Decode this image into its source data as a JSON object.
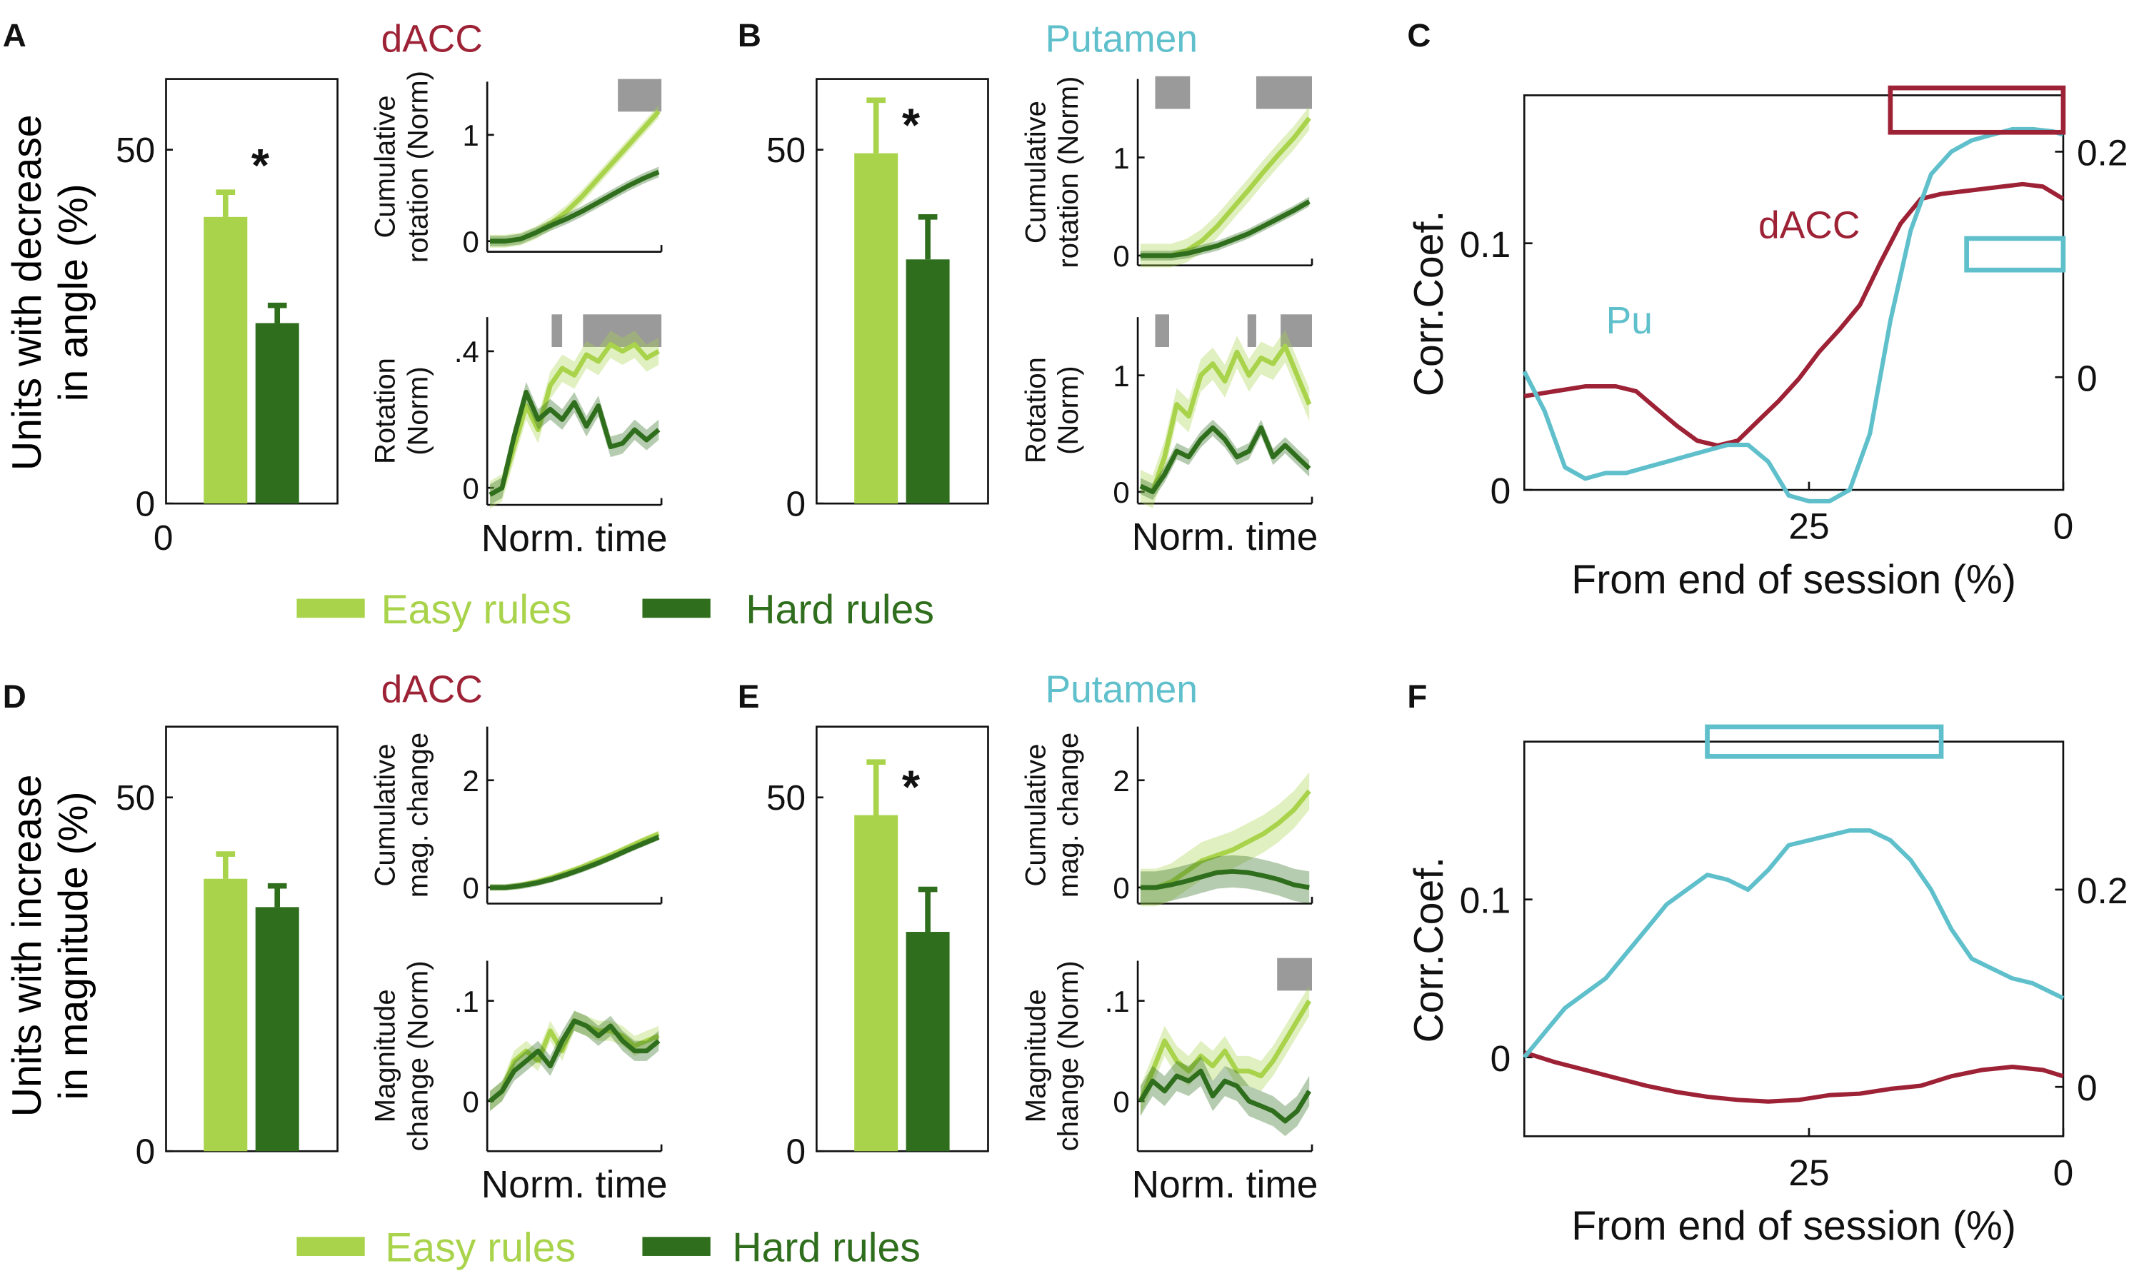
{
  "colors": {
    "easy": "#a8d34a",
    "hard": "#2f6e1c",
    "dacc": "#9e2236",
    "putamen": "#5fc0cc",
    "sig": "#9a9a9a"
  },
  "panels": {
    "A": {
      "letter": "A",
      "region": "dACC"
    },
    "B": {
      "letter": "B",
      "region": "Putamen"
    },
    "C": {
      "letter": "C"
    },
    "D": {
      "letter": "D",
      "region": "dACC"
    },
    "E": {
      "letter": "E",
      "region": "Putamen"
    },
    "F": {
      "letter": "F"
    }
  },
  "legend": {
    "easy": "Easy rules",
    "hard": "Hard rules"
  },
  "labels": {
    "units_angle_l1": "Units with decrease",
    "units_angle_l2": "in angle (%)",
    "units_mag_l1": "Units with increase",
    "units_mag_l2": "in magnitude (%)",
    "cum_rot_l1": "Cumulative",
    "cum_rot_l2": "rotation (Norm)",
    "rot_l1": "Rotation",
    "rot_l2": "(Norm)",
    "cum_mag_l1": "Cumulative",
    "cum_mag_l2": "mag. change",
    "mag_l1": "Magnitude",
    "mag_l2": "change (Norm)",
    "norm_time": "Norm. time",
    "corr": "Corr.Coef.",
    "from_end": "From end of session (%)",
    "star": "*",
    "ann_dacc": "dACC",
    "ann_pu": "Pu"
  },
  "chart_data": [
    {
      "id": "A-bar",
      "type": "bar",
      "ylabel": "Units with decrease in angle (%)",
      "ylim": [
        0,
        60
      ],
      "yticks": [
        "0",
        "50"
      ],
      "categories": [
        "Easy rules",
        "Hard rules"
      ],
      "values": [
        40.5,
        25.5
      ],
      "errors": [
        3.5,
        2.5
      ],
      "significance": "*"
    },
    {
      "id": "A-cum",
      "type": "line",
      "ylabel": "Cumulative rotation (Norm)",
      "xlabel": "",
      "ylim": [
        -0.1,
        1.5
      ],
      "yticks": [
        "0",
        "1"
      ],
      "series": [
        {
          "values": [
            0,
            0,
            0.02,
            0.08,
            0.17,
            0.28,
            0.42,
            0.58,
            0.74,
            0.9,
            1.06,
            1.22
          ],
          "band": 0.06
        },
        {
          "values": [
            0,
            0,
            0.02,
            0.08,
            0.15,
            0.21,
            0.28,
            0.36,
            0.44,
            0.52,
            0.59,
            0.65
          ],
          "band": 0.05
        }
      ],
      "sig_bars": [
        [
          0.75,
          1.0
        ]
      ]
    },
    {
      "id": "A-rot",
      "type": "line",
      "ylabel": "Rotation (Norm)",
      "xlabel": "Norm. time",
      "ylim": [
        -0.05,
        0.5
      ],
      "yticks": [
        "0",
        ".4"
      ],
      "series": [
        {
          "values": [
            -0.02,
            0.0,
            0.12,
            0.24,
            0.17,
            0.3,
            0.35,
            0.33,
            0.39,
            0.37,
            0.42,
            0.4,
            0.42,
            0.38,
            0.4
          ],
          "band": 0.04
        },
        {
          "values": [
            -0.02,
            0.0,
            0.15,
            0.28,
            0.2,
            0.23,
            0.2,
            0.25,
            0.18,
            0.24,
            0.12,
            0.13,
            0.17,
            0.14,
            0.17
          ],
          "band": 0.03
        }
      ],
      "sig_bars": [
        [
          0.37,
          0.43
        ],
        [
          0.55,
          1.0
        ]
      ]
    },
    {
      "id": "B-bar",
      "type": "bar",
      "ylabel": "",
      "ylim": [
        0,
        60
      ],
      "yticks": [
        "0",
        "50"
      ],
      "categories": [
        "Easy rules",
        "Hard rules"
      ],
      "values": [
        49.5,
        34.5
      ],
      "errors": [
        7.5,
        6.0
      ],
      "significance": "*"
    },
    {
      "id": "B-cum",
      "type": "line",
      "ylabel": "Cumulative rotation (Norm)",
      "xlabel": "",
      "ylim": [
        -0.1,
        1.8
      ],
      "yticks": [
        "0",
        "1"
      ],
      "series": [
        {
          "values": [
            0,
            0,
            0,
            0.05,
            0.15,
            0.3,
            0.48,
            0.66,
            0.85,
            1.03,
            1.2,
            1.4
          ],
          "band": 0.12
        },
        {
          "values": [
            0,
            0,
            0,
            0.02,
            0.06,
            0.1,
            0.16,
            0.22,
            0.3,
            0.38,
            0.46,
            0.55
          ],
          "band": 0.05
        }
      ],
      "sig_bars": [
        [
          0.1,
          0.3
        ],
        [
          0.68,
          1.0
        ]
      ]
    },
    {
      "id": "B-rot",
      "type": "line",
      "ylabel": "Rotation (Norm)",
      "xlabel": "Norm. time",
      "ylim": [
        -0.1,
        1.5
      ],
      "yticks": [
        "0",
        "1"
      ],
      "series": [
        {
          "values": [
            0.05,
            0.0,
            0.3,
            0.75,
            0.65,
            1.0,
            1.1,
            0.95,
            1.2,
            1.0,
            1.15,
            1.1,
            1.25,
            1.0,
            0.75
          ],
          "band": 0.14
        },
        {
          "values": [
            0.05,
            0.0,
            0.15,
            0.35,
            0.3,
            0.45,
            0.55,
            0.45,
            0.3,
            0.35,
            0.55,
            0.3,
            0.4,
            0.3,
            0.2
          ],
          "band": 0.07
        }
      ],
      "sig_bars": [
        [
          0.1,
          0.18
        ],
        [
          0.63,
          0.68
        ],
        [
          0.82,
          1.0
        ]
      ]
    },
    {
      "id": "C",
      "type": "line",
      "xlabel": "From end of session (%)",
      "ylabel": "Corr.Coef.",
      "xlim": [
        53,
        0
      ],
      "xticks": [
        "25",
        "0"
      ],
      "ylim_left": [
        0,
        0.16
      ],
      "yticks_left": [
        "0",
        "0.1"
      ],
      "ylim_right": [
        -0.1,
        0.25
      ],
      "yticks_right": [
        "0",
        "0.2"
      ],
      "series": [
        {
          "name": "dACC",
          "axis": "left",
          "x": [
            53,
            50,
            47,
            44,
            42,
            40,
            38,
            36,
            34,
            32,
            30,
            28,
            26,
            24,
            22,
            20,
            18,
            16,
            14,
            12,
            10,
            8,
            6,
            4,
            2,
            0
          ],
          "values": [
            0.038,
            0.04,
            0.042,
            0.042,
            0.04,
            0.033,
            0.026,
            0.02,
            0.018,
            0.02,
            0.028,
            0.036,
            0.045,
            0.056,
            0.065,
            0.075,
            0.092,
            0.108,
            0.118,
            0.12,
            0.121,
            0.122,
            0.123,
            0.124,
            0.123,
            0.118
          ]
        },
        {
          "name": "Pu",
          "axis": "right",
          "x": [
            53,
            51,
            49,
            47,
            45,
            43,
            41,
            39,
            37,
            35,
            33,
            31,
            29,
            27,
            25,
            23,
            21,
            19,
            17,
            15,
            13,
            11,
            9,
            7,
            5,
            3,
            1,
            0
          ],
          "values": [
            0.005,
            -0.03,
            -0.08,
            -0.09,
            -0.085,
            -0.085,
            -0.08,
            -0.075,
            -0.07,
            -0.065,
            -0.06,
            -0.06,
            -0.075,
            -0.105,
            -0.11,
            -0.11,
            -0.1,
            -0.05,
            0.05,
            0.13,
            0.18,
            0.2,
            0.21,
            0.215,
            0.22,
            0.22,
            0.218,
            0.215
          ]
        }
      ],
      "sig_boxes": [
        {
          "series": "dACC",
          "x": [
            17,
            0
          ],
          "y": [
            0.145,
            0.163
          ]
        },
        {
          "series": "Pu",
          "x": [
            9.5,
            0
          ],
          "y": [
            0.095,
            0.123
          ]
        }
      ]
    },
    {
      "id": "D-bar",
      "type": "bar",
      "ylabel": "Units with increase in magnitude (%)",
      "ylim": [
        0,
        60
      ],
      "yticks": [
        "0",
        "50"
      ],
      "categories": [
        "Easy rules",
        "Hard rules"
      ],
      "values": [
        38.5,
        34.5
      ],
      "errors": [
        3.5,
        3.0
      ]
    },
    {
      "id": "D-cum",
      "type": "line",
      "ylabel": "Cumulative mag. change",
      "xlabel": "",
      "ylim": [
        -0.3,
        3.0
      ],
      "yticks": [
        "0",
        "2"
      ],
      "series": [
        {
          "values": [
            0,
            0,
            0.04,
            0.1,
            0.18,
            0.28,
            0.38,
            0.5,
            0.62,
            0.75,
            0.88,
            1.0
          ],
          "band": 0.06
        },
        {
          "values": [
            0,
            0,
            0.03,
            0.08,
            0.15,
            0.24,
            0.34,
            0.45,
            0.57,
            0.7,
            0.82,
            0.94
          ],
          "band": 0.06
        }
      ]
    },
    {
      "id": "D-mag",
      "type": "line",
      "ylabel": "Magnitude change (Norm)",
      "xlabel": "Norm. time",
      "ylim": [
        -0.05,
        0.14
      ],
      "yticks": [
        "0",
        ".1"
      ],
      "series": [
        {
          "values": [
            0.0,
            0.01,
            0.04,
            0.05,
            0.04,
            0.07,
            0.05,
            0.08,
            0.075,
            0.07,
            0.07,
            0.065,
            0.055,
            0.06,
            0.065
          ],
          "band": 0.01
        },
        {
          "values": [
            0.0,
            0.01,
            0.03,
            0.04,
            0.05,
            0.035,
            0.06,
            0.08,
            0.075,
            0.065,
            0.075,
            0.06,
            0.05,
            0.05,
            0.06
          ],
          "band": 0.01
        }
      ]
    },
    {
      "id": "E-bar",
      "type": "bar",
      "ylabel": "",
      "ylim": [
        0,
        60
      ],
      "yticks": [
        "0",
        "50"
      ],
      "categories": [
        "Easy rules",
        "Hard rules"
      ],
      "values": [
        47.5,
        31.0
      ],
      "errors": [
        7.5,
        6.0
      ],
      "significance": "*"
    },
    {
      "id": "E-cum",
      "type": "line",
      "ylabel": "Cumulative mag. change",
      "xlabel": "",
      "ylim": [
        -0.3,
        3.0
      ],
      "yticks": [
        "0",
        "2"
      ],
      "series": [
        {
          "values": [
            0,
            0,
            0.1,
            0.3,
            0.5,
            0.6,
            0.7,
            0.85,
            1.0,
            1.2,
            1.45,
            1.8
          ],
          "band": 0.35
        },
        {
          "values": [
            0,
            0,
            0.05,
            0.12,
            0.2,
            0.28,
            0.3,
            0.28,
            0.22,
            0.15,
            0.05,
            0.0
          ],
          "band": 0.3
        }
      ]
    },
    {
      "id": "E-mag",
      "type": "line",
      "ylabel": "Magnitude change (Norm)",
      "xlabel": "Norm. time",
      "ylim": [
        -0.05,
        0.14
      ],
      "yticks": [
        "0",
        ".1"
      ],
      "series": [
        {
          "values": [
            0.0,
            0.03,
            0.06,
            0.04,
            0.03,
            0.045,
            0.035,
            0.05,
            0.03,
            0.03,
            0.025,
            0.04,
            0.06,
            0.08,
            0.1
          ],
          "band": 0.015
        },
        {
          "values": [
            0.0,
            0.02,
            0.01,
            0.025,
            0.02,
            0.03,
            0.005,
            0.02,
            0.015,
            0.0,
            -0.005,
            -0.01,
            -0.02,
            -0.01,
            0.01
          ],
          "band": 0.015
        }
      ],
      "sig_bars": [
        [
          0.8,
          1.0
        ]
      ]
    },
    {
      "id": "F",
      "type": "line",
      "xlabel": "From end of session (%)",
      "ylabel": "Corr.Coef.",
      "xlim": [
        53,
        0
      ],
      "xticks": [
        "25",
        "0"
      ],
      "ylim_left": [
        -0.05,
        0.2
      ],
      "yticks_left": [
        "0",
        "0.1"
      ],
      "ylim_right": [
        -0.05,
        0.35
      ],
      "yticks_right": [
        "0",
        "0.2"
      ],
      "series": [
        {
          "name": "dACC",
          "axis": "left",
          "x": [
            53,
            50,
            47,
            44,
            41,
            38,
            35,
            32,
            29,
            26,
            23,
            20,
            17,
            14,
            11,
            8,
            5,
            2,
            0
          ],
          "values": [
            0.003,
            -0.003,
            -0.008,
            -0.013,
            -0.018,
            -0.022,
            -0.025,
            -0.027,
            -0.028,
            -0.027,
            -0.024,
            -0.023,
            -0.02,
            -0.018,
            -0.012,
            -0.008,
            -0.006,
            -0.008,
            -0.012
          ]
        },
        {
          "name": "Pu",
          "axis": "right",
          "x": [
            53,
            51,
            49,
            47,
            45,
            43,
            41,
            39,
            37,
            35,
            33,
            31,
            29,
            27,
            25,
            23,
            21,
            19,
            17,
            15,
            13,
            11,
            9,
            7,
            5,
            3,
            1,
            0
          ],
          "values": [
            0.03,
            0.055,
            0.08,
            0.095,
            0.11,
            0.135,
            0.16,
            0.185,
            0.2,
            0.215,
            0.21,
            0.2,
            0.22,
            0.245,
            0.25,
            0.255,
            0.26,
            0.26,
            0.25,
            0.23,
            0.2,
            0.16,
            0.13,
            0.12,
            0.11,
            0.105,
            0.095,
            0.09
          ]
        }
      ],
      "sig_boxes": [
        {
          "series": "Pu",
          "x": [
            35,
            12
          ],
          "y": [
            0.335,
            0.365
          ]
        }
      ]
    }
  ]
}
